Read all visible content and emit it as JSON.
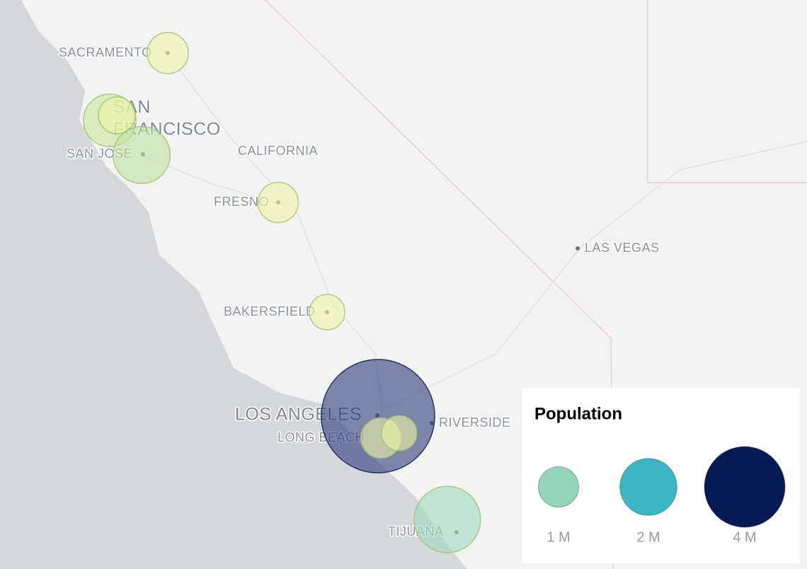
{
  "map": {
    "labels": [
      "SACRAMENTO",
      "SAN",
      "FRANCISCO",
      "SAN JOSE",
      "CALIFORNIA",
      "FRESNO",
      "BAKERSFIELD",
      "LAS VEGAS",
      "LOS ANGELES",
      "LONG BEACH",
      "RIVERSIDE",
      "TIJUANA"
    ],
    "bubbles": [
      {
        "population": 1040000,
        "color": "#eef5a6"
      },
      {
        "population": 1700000,
        "color": "#c9e69a"
      },
      {
        "population": 830000,
        "color": "#eef5a6"
      },
      {
        "population": 2000000,
        "color": "#bfe3a0"
      },
      {
        "population": 1000000,
        "color": "#eef5a6"
      },
      {
        "population": 770000,
        "color": "#eef5a6"
      },
      {
        "population": 7900000,
        "color": "#2b3a7a"
      },
      {
        "population": 1000000,
        "color": "#eef5a6"
      },
      {
        "population": 770000,
        "color": "#eef5a6"
      },
      {
        "population": 2700000,
        "color": "#9fdcc0"
      }
    ]
  },
  "legend": {
    "title": "Population",
    "items": [
      {
        "value": 1000000,
        "label": "1 M",
        "color": "#93d5b8"
      },
      {
        "value": 2000000,
        "label": "2 M",
        "color": "#3ab6c5"
      },
      {
        "value": 4000000,
        "label": "4 M",
        "color": "#061a55"
      }
    ]
  }
}
